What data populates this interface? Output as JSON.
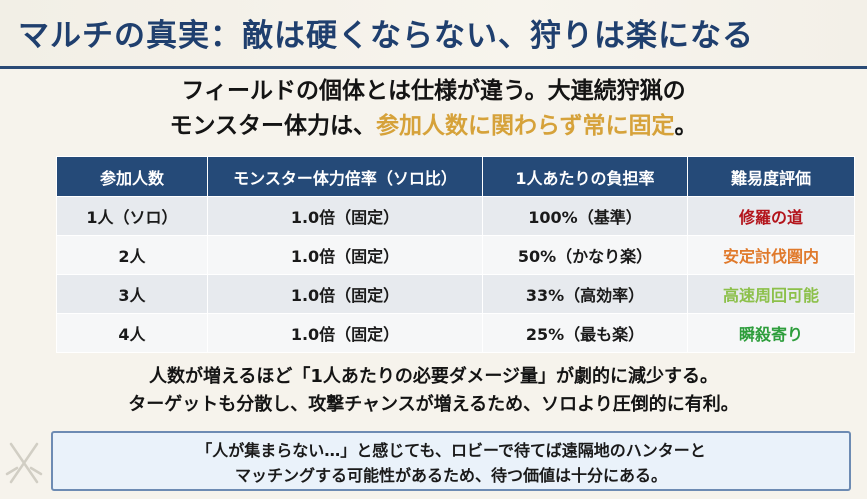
{
  "title": "マルチの真実：敵は硬くならない、狩りは楽になる",
  "intro": {
    "line1": "フィールドの個体とは仕様が違う。大連続狩猟の",
    "line2_prefix": "モンスター体力は、",
    "line2_accent": "参加人数に関わらず常に固定",
    "line2_suffix": "。"
  },
  "table": {
    "headers": [
      "参加人数",
      "モンスター体力倍率（ソロ比）",
      "1人あたりの負担率",
      "難易度評価"
    ],
    "rows": [
      {
        "players": "1人（ソロ）",
        "hp_rate": "1.0倍（固定）",
        "burden": "100%（基準）",
        "rating": "修羅の道",
        "rating_color": "#b3141b"
      },
      {
        "players": "2人",
        "hp_rate": "1.0倍（固定）",
        "burden": "50%（かなり楽）",
        "rating": "安定討伐圏内",
        "rating_color": "#e07a2c"
      },
      {
        "players": "3人",
        "hp_rate": "1.0倍（固定）",
        "burden": "33%（高効率）",
        "rating": "高速周回可能",
        "rating_color": "#8cc04a"
      },
      {
        "players": "4人",
        "hp_rate": "1.0倍（固定）",
        "burden": "25%（最も楽）",
        "rating": "瞬殺寄り",
        "rating_color": "#2e9e3c"
      }
    ]
  },
  "summary": {
    "line1": "人数が増えるほど「1人あたりの必要ダメージ量」が劇的に減少する。",
    "line2": "ターゲットも分散し、攻撃チャンスが増えるため、ソロより圧倒的に有利。"
  },
  "note": {
    "line1": "「人が集まらない…」と感じても、ロビーで待てば遠隔地のハンターと",
    "line2": "マッチングする可能性があるため、待つ価値は十分にある。"
  },
  "colors": {
    "title": "#1f3f6e",
    "header_bg": "#254a78",
    "accent": "#d6a23a"
  },
  "icons": {
    "deco": "crossed-swords-icon"
  }
}
